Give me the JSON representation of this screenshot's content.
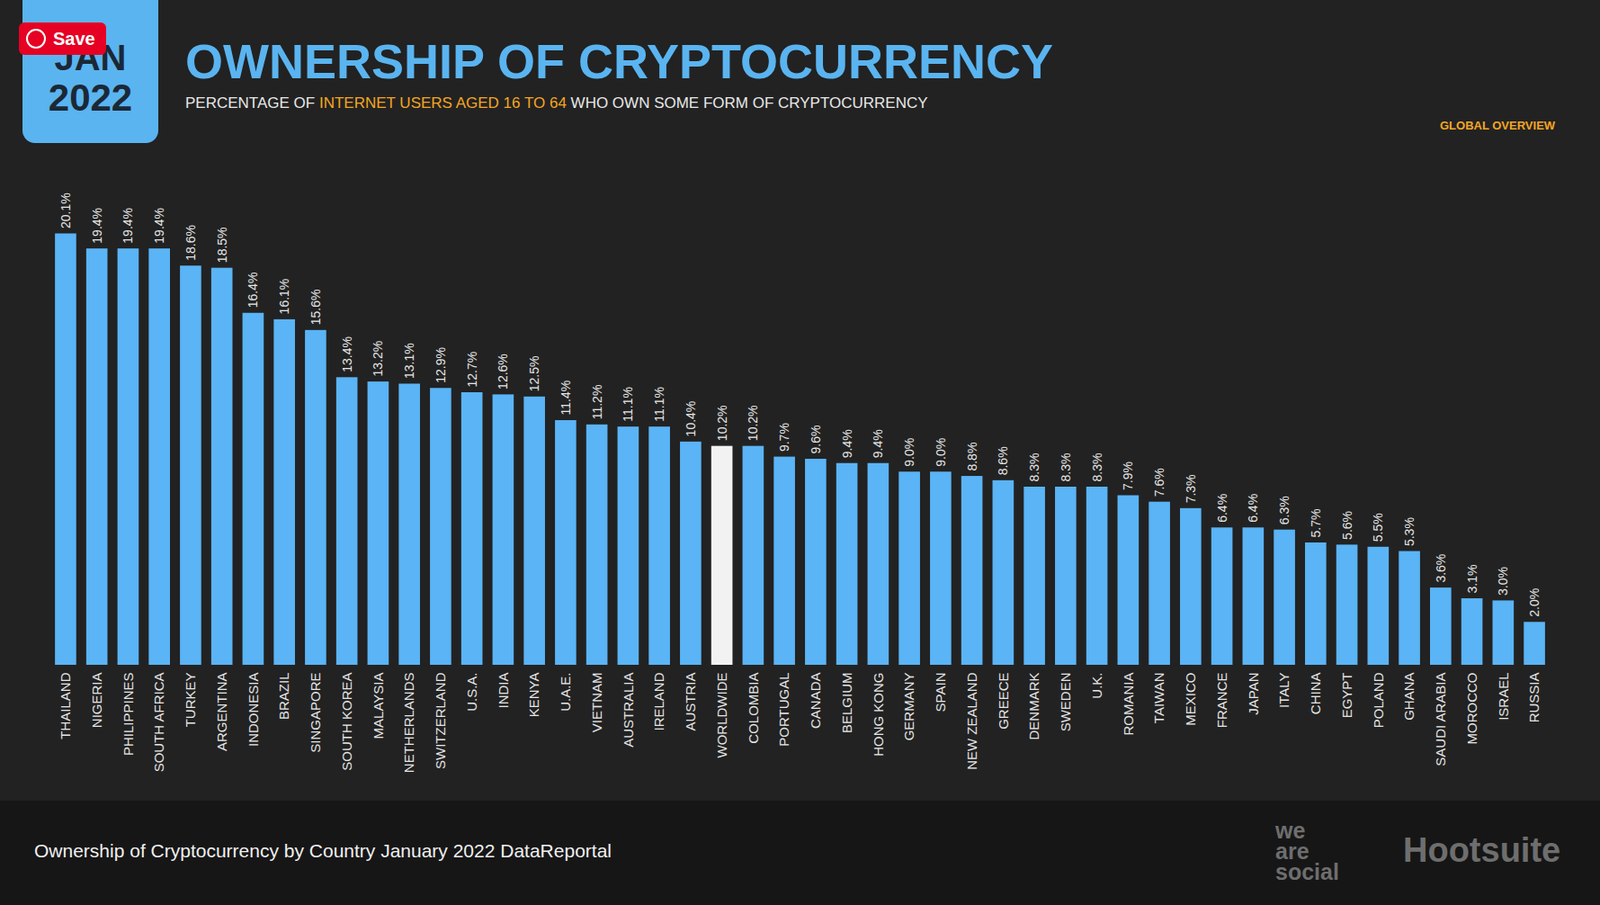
{
  "chart_data": {
    "type": "bar",
    "title": "OWNERSHIP OF CRYPTOCURRENCY",
    "subtitle": "PERCENTAGE OF INTERNET USERS AGED 16 TO 64 WHO OWN SOME FORM OF CRYPTOCURRENCY",
    "subtitle_highlight": "INTERNET USERS AGED 16 TO 64",
    "categories": [
      "THAILAND",
      "NIGERIA",
      "PHILIPPINES",
      "SOUTH AFRICA",
      "TURKEY",
      "ARGENTINA",
      "INDONESIA",
      "BRAZIL",
      "SINGAPORE",
      "SOUTH KOREA",
      "MALAYSIA",
      "NETHERLANDS",
      "SWITZERLAND",
      "U.S.A.",
      "INDIA",
      "KENYA",
      "U.A.E.",
      "VIETNAM",
      "AUSTRALIA",
      "IRELAND",
      "AUSTRIA",
      "WORLDWIDE",
      "COLOMBIA",
      "PORTUGAL",
      "CANADA",
      "BELGIUM",
      "HONG KONG",
      "GERMANY",
      "SPAIN",
      "NEW ZEALAND",
      "GREECE",
      "DENMARK",
      "SWEDEN",
      "U.K.",
      "ROMANIA",
      "TAIWAN",
      "MEXICO",
      "FRANCE",
      "JAPAN",
      "ITALY",
      "CHINA",
      "EGYPT",
      "POLAND",
      "GHANA",
      "SAUDI ARABIA",
      "MOROCCO",
      "ISRAEL",
      "RUSSIA"
    ],
    "values": [
      20.1,
      19.4,
      19.4,
      19.4,
      18.6,
      18.5,
      16.4,
      16.1,
      15.6,
      13.4,
      13.2,
      13.1,
      12.9,
      12.7,
      12.6,
      12.5,
      11.4,
      11.2,
      11.1,
      11.1,
      10.4,
      10.2,
      10.2,
      9.7,
      9.6,
      9.4,
      9.4,
      9.0,
      9.0,
      8.8,
      8.6,
      8.3,
      8.3,
      8.3,
      7.9,
      7.6,
      7.3,
      6.4,
      6.4,
      6.3,
      5.7,
      5.6,
      5.5,
      5.3,
      3.6,
      3.1,
      3.0,
      2.0
    ],
    "value_labels": [
      "20.1%",
      "19.4%",
      "19.4%",
      "19.4%",
      "18.6%",
      "18.5%",
      "16.4%",
      "16.1%",
      "15.6%",
      "13.4%",
      "13.2%",
      "13.1%",
      "12.9%",
      "12.7%",
      "12.6%",
      "12.5%",
      "11.4%",
      "11.2%",
      "11.1%",
      "11.1%",
      "10.4%",
      "10.2%",
      "10.2%",
      "9.7%",
      "9.6%",
      "9.4%",
      "9.4%",
      "9.0%",
      "9.0%",
      "8.8%",
      "8.6%",
      "8.3%",
      "8.3%",
      "8.3%",
      "7.9%",
      "7.6%",
      "7.3%",
      "6.4%",
      "6.4%",
      "6.3%",
      "5.7%",
      "5.6%",
      "5.5%",
      "5.3%",
      "3.6%",
      "3.1%",
      "3.0%",
      "2.0%"
    ],
    "colors": [
      "#5ab4f5",
      "#5ab4f5",
      "#5ab4f5",
      "#5ab4f5",
      "#5ab4f5",
      "#5ab4f5",
      "#5ab4f5",
      "#5ab4f5",
      "#5ab4f5",
      "#5ab4f5",
      "#5ab4f5",
      "#5ab4f5",
      "#5ab4f5",
      "#5ab4f5",
      "#5ab4f5",
      "#5ab4f5",
      "#5ab4f5",
      "#5ab4f5",
      "#5ab4f5",
      "#5ab4f5",
      "#5ab4f5",
      "#f2f2f2",
      "#5ab4f5",
      "#5ab4f5",
      "#5ab4f5",
      "#5ab4f5",
      "#5ab4f5",
      "#5ab4f5",
      "#5ab4f5",
      "#5ab4f5",
      "#5ab4f5",
      "#5ab4f5",
      "#5ab4f5",
      "#5ab4f5",
      "#5ab4f5",
      "#5ab4f5",
      "#5ab4f5",
      "#5ab4f5",
      "#5ab4f5",
      "#5ab4f5",
      "#5ab4f5",
      "#5ab4f5",
      "#5ab4f5",
      "#5ab4f5",
      "#5ab4f5",
      "#5ab4f5",
      "#5ab4f5",
      "#5ab4f5"
    ],
    "ylim": [
      0,
      21
    ],
    "data_labels": true,
    "tick_labels": "x",
    "grid": false
  },
  "header": {
    "badge_month": "JAN",
    "badge_year": "2022",
    "save_button": "Save",
    "region_label": "GLOBAL OVERVIEW"
  },
  "footer": {
    "caption": "Ownership of Cryptocurrency by Country January 2022 DataReportal",
    "logos": [
      "we are social",
      "Hootsuite"
    ]
  }
}
